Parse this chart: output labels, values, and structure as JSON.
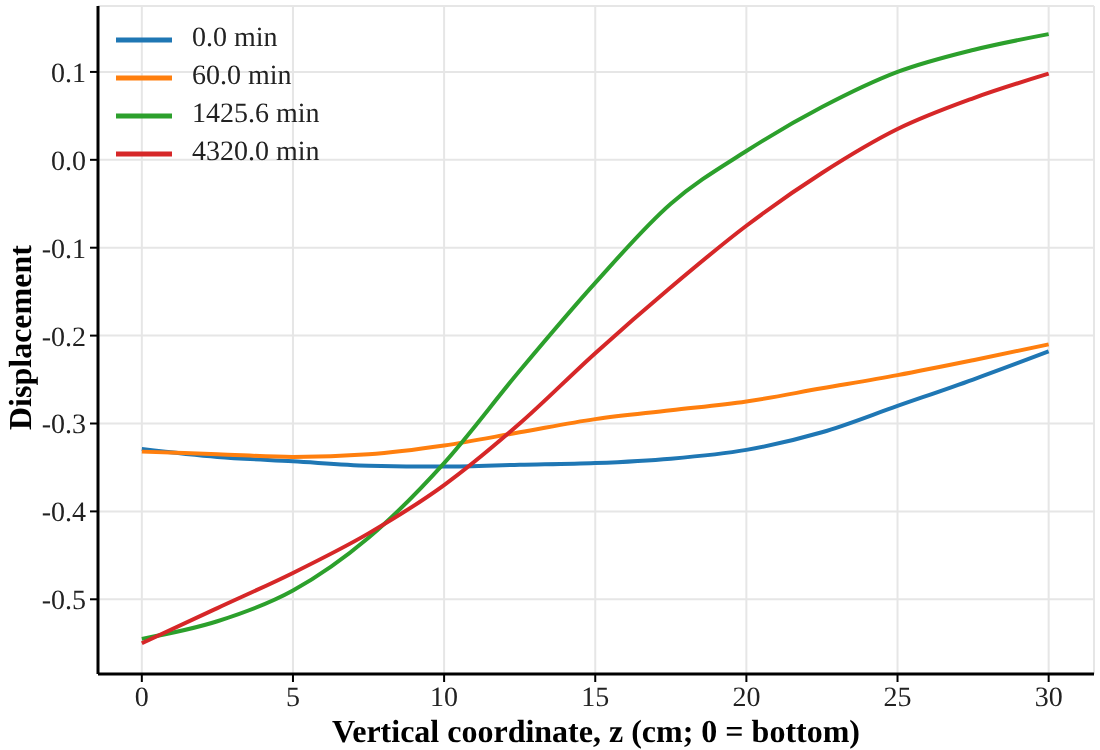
{
  "chart_data": {
    "type": "line",
    "xlabel": "Vertical coordinate, z (cm; 0 = bottom)",
    "ylabel": "Displacement",
    "x": [
      0,
      2.5,
      5,
      7.5,
      10,
      12.5,
      15,
      17.5,
      20,
      22.5,
      25,
      27.5,
      30
    ],
    "xlim": [
      -1.45,
      31.5
    ],
    "xticks": [
      0,
      5,
      10,
      15,
      20,
      25,
      30
    ],
    "ylim": [
      -0.585,
      0.175
    ],
    "yticks": [
      {
        "value": -0.5,
        "label": "-0.5"
      },
      {
        "value": -0.4,
        "label": "-0.4"
      },
      {
        "value": -0.3,
        "label": "-0.3"
      },
      {
        "value": -0.2,
        "label": "-0.2"
      },
      {
        "value": -0.1,
        "label": "-0.1"
      },
      {
        "value": 0,
        "label": "0.0"
      },
      {
        "value": 0.1,
        "label": "0.1"
      }
    ],
    "series": [
      {
        "name": "0.0 min",
        "color": "#1f77b4",
        "values": [
          -0.329,
          -0.338,
          -0.343,
          -0.348,
          -0.349,
          -0.347,
          -0.345,
          -0.34,
          -0.33,
          -0.31,
          -0.28,
          -0.25,
          -0.218
        ]
      },
      {
        "name": "60.0 min",
        "color": "#ff7f0e",
        "values": [
          -0.332,
          -0.335,
          -0.338,
          -0.335,
          -0.325,
          -0.31,
          -0.295,
          -0.285,
          -0.275,
          -0.26,
          -0.245,
          -0.228,
          -0.21
        ]
      },
      {
        "name": "1425.6 min",
        "color": "#2ca02c",
        "values": [
          -0.545,
          -0.525,
          -0.49,
          -0.43,
          -0.345,
          -0.24,
          -0.14,
          -0.05,
          0.01,
          0.06,
          0.1,
          0.125,
          0.143
        ]
      },
      {
        "name": "4320.0 min",
        "color": "#d62728",
        "values": [
          -0.55,
          -0.51,
          -0.47,
          -0.425,
          -0.37,
          -0.3,
          -0.22,
          -0.145,
          -0.075,
          -0.015,
          0.035,
          0.07,
          0.098
        ]
      }
    ],
    "grid": true,
    "legend": "top left",
    "marker": "none",
    "line_style": "solid"
  }
}
